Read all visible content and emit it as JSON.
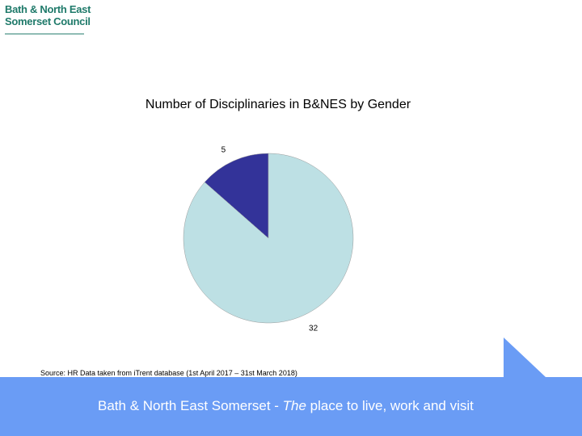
{
  "logo": [
    "Bath & North East",
    "Somerset Council"
  ],
  "chart_data": {
    "type": "pie",
    "title": "Number of Disciplinaries in B&NES by Gender",
    "categories": [
      null,
      null
    ],
    "values": [
      5,
      32
    ],
    "colors": [
      "#333399",
      "#bde0e4"
    ]
  },
  "source": "Source: HR Data taken from iTrent database (1st April 2017 – 31st March 2018)",
  "footer": {
    "before": "Bath & North East Somerset - ",
    "italic": "The",
    "after": " place to live, work and visit"
  }
}
